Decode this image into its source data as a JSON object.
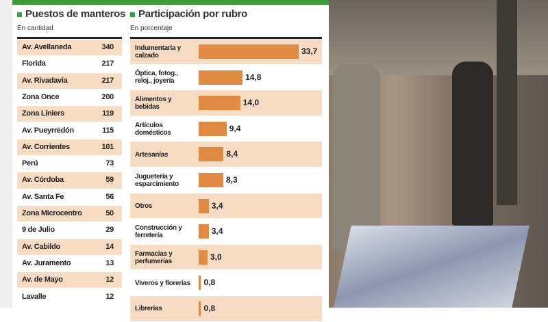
{
  "chart_data": [
    {
      "type": "table",
      "title": "Puestos de manteros",
      "subtitle": "En cantidad",
      "categories": [
        "Av. Avellaneda",
        "Florida",
        "Av. Rivadavia",
        "Zona Once",
        "Zona Liniers",
        "Av. Pueyrredón",
        "Av. Corrientes",
        "Perú",
        "Av. Córdoba",
        "Av. Santa Fe",
        "Zona Microcentro",
        "9 de Julio",
        "Av. Cabildo",
        "Av. Juramento",
        "Av. de Mayo",
        "Lavalle"
      ],
      "values": [
        340,
        217,
        217,
        200,
        119,
        115,
        101,
        73,
        59,
        56,
        50,
        29,
        14,
        13,
        12,
        12
      ]
    },
    {
      "type": "bar",
      "orientation": "horizontal",
      "title": "Participación por rubro",
      "subtitle": "En porcentaje",
      "color": "#e08a43",
      "categories": [
        "Indumentaria y calzado",
        "Óptica, fotog., reloj., joyería",
        "Alimentos y bebidas",
        "Artículos domésticos",
        "Artesanías",
        "Juguetería y esparcimiento",
        "Otros",
        "Construcción y ferretería",
        "Farmacias y perfumerías",
        "Viveros y florerías",
        "Librerías"
      ],
      "values": [
        33.7,
        14.8,
        14.0,
        9.4,
        8.4,
        8.3,
        3.4,
        3.4,
        3.0,
        0.8,
        0.8
      ],
      "value_labels": [
        "33,7",
        "14,8",
        "14,0",
        "9,4",
        "8,4",
        "8,3",
        "3,4",
        "3,4",
        "3,0",
        "0,8",
        "0,8"
      ]
    }
  ]
}
